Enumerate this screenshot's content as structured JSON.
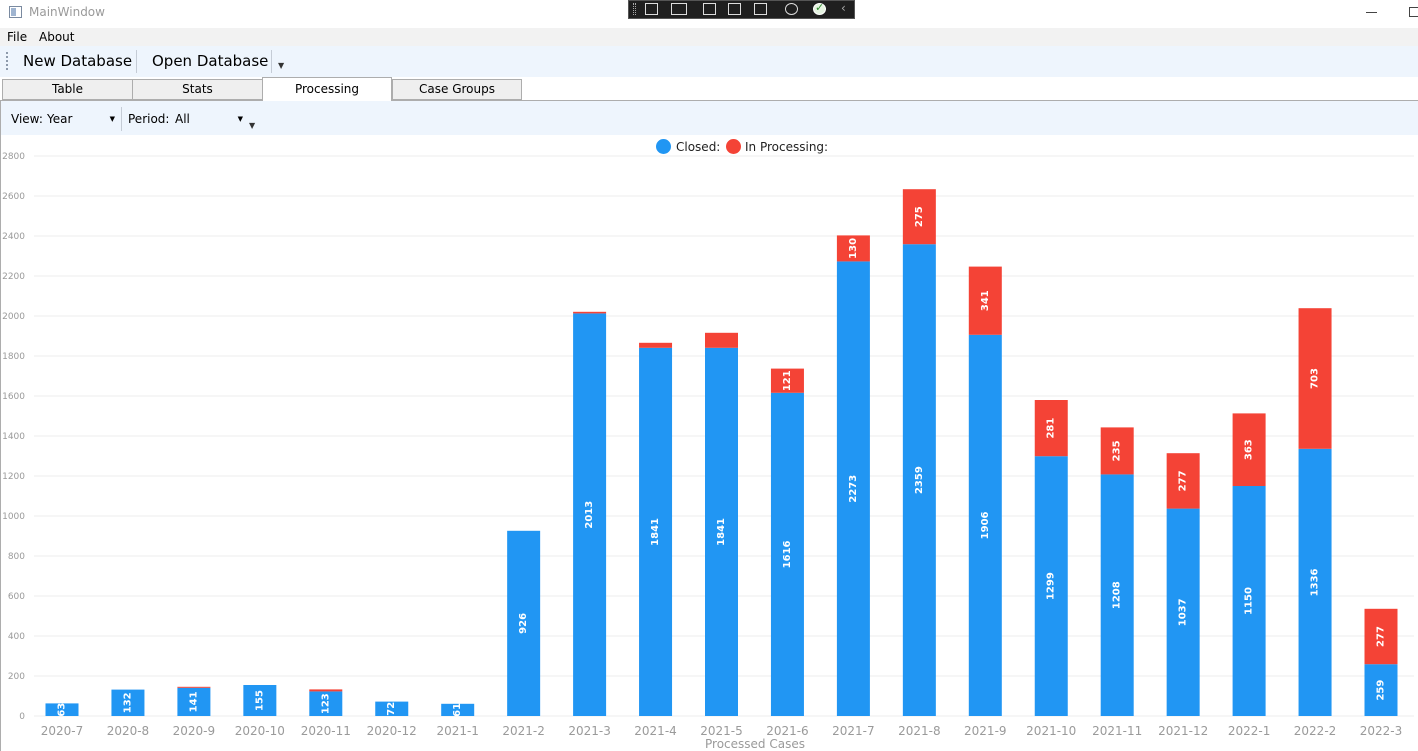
{
  "window": {
    "title": "MainWindow"
  },
  "menu": [
    "File",
    "About"
  ],
  "toolbar": {
    "new_db": "New Database",
    "open_db": "Open Database"
  },
  "tabs": [
    {
      "label": "Table",
      "active": false
    },
    {
      "label": "Stats",
      "active": false
    },
    {
      "label": "Processing",
      "active": true
    },
    {
      "label": "Case Groups",
      "active": false
    }
  ],
  "options": {
    "view_label": "View:",
    "view_value": "Year",
    "period_label": "Period:",
    "period_value": "All"
  },
  "colors": {
    "closed": "#2196f3",
    "processing": "#f44336"
  },
  "chart_data": {
    "type": "bar",
    "stacked": true,
    "xlabel": "Processed Cases",
    "ylabel": "",
    "ylim": [
      0,
      2800
    ],
    "yticks": [
      0,
      200,
      400,
      600,
      800,
      1000,
      1200,
      1400,
      1600,
      1800,
      2000,
      2200,
      2400,
      2600,
      2800
    ],
    "grid": true,
    "legend": "top-center",
    "categories": [
      "2020-7",
      "2020-8",
      "2020-9",
      "2020-10",
      "2020-11",
      "2020-12",
      "2021-1",
      "2021-2",
      "2021-3",
      "2021-4",
      "2021-5",
      "2021-6",
      "2021-7",
      "2021-8",
      "2021-9",
      "2021-10",
      "2021-11",
      "2021-12",
      "2022-1",
      "2022-2",
      "2022-3"
    ],
    "series": [
      {
        "name": "Closed:",
        "values": [
          63,
          132,
          141,
          155,
          123,
          72,
          61,
          926,
          2013,
          1841,
          1841,
          1616,
          2273,
          2359,
          1906,
          1299,
          1208,
          1037,
          1150,
          1336,
          259
        ],
        "labels": [
          "63",
          "132",
          "141",
          "155",
          "123",
          "72",
          "61",
          "926",
          "2013",
          "1841",
          "1841",
          "1616",
          "2273",
          "2359",
          "1906",
          "1299",
          "1208",
          "1037",
          "1150",
          "1336",
          "259"
        ]
      },
      {
        "name": "In Processing:",
        "values": [
          0,
          0,
          5,
          0,
          10,
          0,
          0,
          0,
          8,
          25,
          75,
          121,
          130,
          275,
          341,
          281,
          235,
          277,
          363,
          703,
          277
        ],
        "labels": [
          "",
          "",
          "",
          "",
          "",
          "",
          "",
          "",
          "",
          "",
          "",
          "121",
          "130",
          "275",
          "341",
          "281",
          "235",
          "277",
          "363",
          "703",
          "277"
        ]
      }
    ]
  }
}
